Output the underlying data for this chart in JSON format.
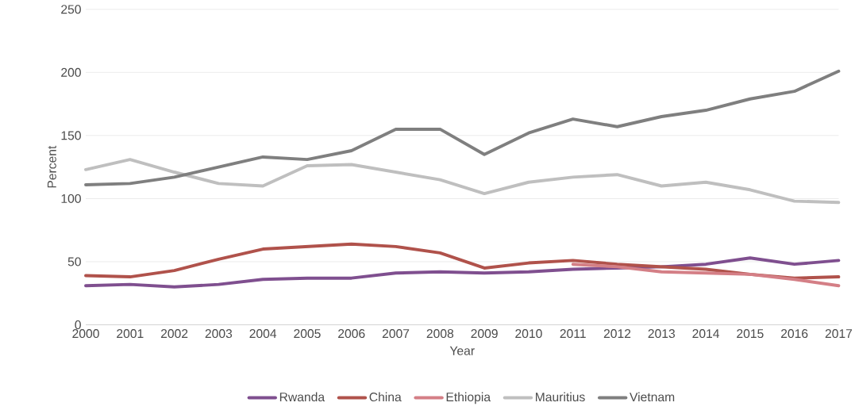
{
  "chart_data": {
    "type": "line",
    "xlabel": "Year",
    "ylabel": "Percent",
    "x": [
      2000,
      2001,
      2002,
      2003,
      2004,
      2005,
      2006,
      2007,
      2008,
      2009,
      2010,
      2011,
      2012,
      2013,
      2014,
      2015,
      2016,
      2017
    ],
    "series": [
      {
        "name": "Rwanda",
        "color": "#7f4f8f",
        "values": [
          31,
          32,
          30,
          32,
          36,
          37,
          37,
          41,
          42,
          41,
          42,
          44,
          45,
          46,
          48,
          53,
          48,
          51
        ]
      },
      {
        "name": "China",
        "color": "#b0524b",
        "values": [
          39,
          38,
          43,
          52,
          60,
          62,
          64,
          62,
          57,
          45,
          49,
          51,
          48,
          46,
          44,
          40,
          37,
          38
        ]
      },
      {
        "name": "Ethiopia",
        "color": "#d47f86",
        "values": [
          null,
          null,
          null,
          null,
          null,
          null,
          null,
          null,
          null,
          null,
          null,
          48,
          46,
          42,
          41,
          40,
          36,
          31
        ]
      },
      {
        "name": "Mauritius",
        "color": "#bfbfbf",
        "values": [
          123,
          131,
          121,
          112,
          110,
          126,
          127,
          121,
          115,
          104,
          113,
          117,
          119,
          110,
          113,
          107,
          98,
          97
        ]
      },
      {
        "name": "Vietnam",
        "color": "#7f7f7f",
        "values": [
          111,
          112,
          117,
          125,
          133,
          131,
          138,
          155,
          155,
          135,
          152,
          163,
          157,
          165,
          170,
          179,
          185,
          201
        ]
      }
    ],
    "xlim": [
      2000,
      2017
    ],
    "xticks": [
      2000,
      2001,
      2002,
      2003,
      2004,
      2005,
      2006,
      2007,
      2008,
      2009,
      2010,
      2011,
      2012,
      2013,
      2014,
      2015,
      2016,
      2017
    ],
    "ylim": [
      0,
      250
    ],
    "yticks": [
      0,
      50,
      100,
      150,
      200,
      250
    ],
    "grid": "y",
    "legend": "bottom",
    "marker": "none",
    "line_style": "solid"
  }
}
